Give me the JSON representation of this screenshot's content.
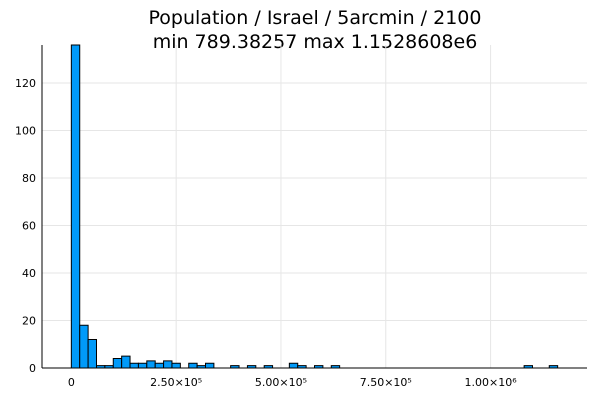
{
  "chart_data": {
    "type": "bar",
    "title": "Population / Israel / 5arcmin / 2100",
    "subtitle": "min 789.38257  max 1.1528608e6",
    "xlabel": "",
    "ylabel": "",
    "bin_width": 20000,
    "bins": [
      {
        "x0": 0,
        "count": 136
      },
      {
        "x0": 20000,
        "count": 18
      },
      {
        "x0": 40000,
        "count": 12
      },
      {
        "x0": 60000,
        "count": 1
      },
      {
        "x0": 80000,
        "count": 1
      },
      {
        "x0": 100000,
        "count": 4
      },
      {
        "x0": 120000,
        "count": 5
      },
      {
        "x0": 140000,
        "count": 2
      },
      {
        "x0": 160000,
        "count": 2
      },
      {
        "x0": 180000,
        "count": 3
      },
      {
        "x0": 200000,
        "count": 2
      },
      {
        "x0": 220000,
        "count": 3
      },
      {
        "x0": 240000,
        "count": 2
      },
      {
        "x0": 280000,
        "count": 2
      },
      {
        "x0": 300000,
        "count": 1
      },
      {
        "x0": 320000,
        "count": 2
      },
      {
        "x0": 380000,
        "count": 1
      },
      {
        "x0": 420000,
        "count": 1
      },
      {
        "x0": 460000,
        "count": 1
      },
      {
        "x0": 520000,
        "count": 2
      },
      {
        "x0": 540000,
        "count": 1
      },
      {
        "x0": 580000,
        "count": 1
      },
      {
        "x0": 620000,
        "count": 1
      },
      {
        "x0": 1080000,
        "count": 1
      },
      {
        "x0": 1140000,
        "count": 1
      }
    ],
    "xlim": [
      -70000,
      1230000
    ],
    "ylim": [
      0,
      136
    ],
    "x_ticks": [
      {
        "value": 0,
        "label": "0"
      },
      {
        "value": 250000,
        "label": "2.50×10⁵"
      },
      {
        "value": 500000,
        "label": "5.00×10⁵"
      },
      {
        "value": 750000,
        "label": "7.50×10⁵"
      },
      {
        "value": 1000000,
        "label": "1.00×10⁶"
      }
    ],
    "y_ticks": [
      {
        "value": 0,
        "label": "0"
      },
      {
        "value": 20,
        "label": "20"
      },
      {
        "value": 40,
        "label": "40"
      },
      {
        "value": 60,
        "label": "60"
      },
      {
        "value": 80,
        "label": "80"
      },
      {
        "value": 100,
        "label": "100"
      },
      {
        "value": 120,
        "label": "120"
      }
    ],
    "grid": true,
    "legend": "none",
    "colors": {
      "bar_fill": "#009af9",
      "bar_stroke": "#000000",
      "grid": "#e6e6e6"
    }
  }
}
